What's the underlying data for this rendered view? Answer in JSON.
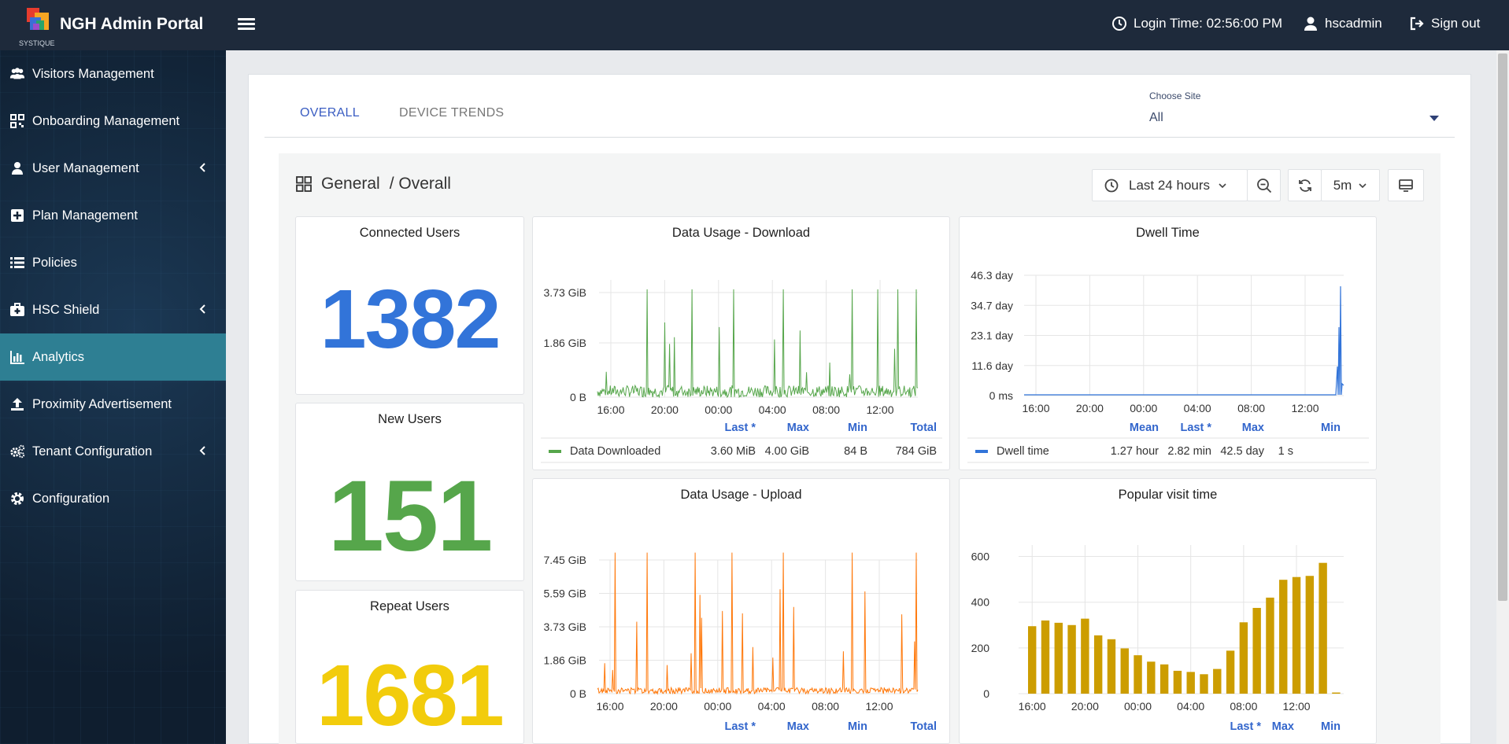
{
  "app": {
    "title": "NGH Admin Portal",
    "logo_text": "SYSTIQUE",
    "login_time": "Login Time: 02:56:00 PM",
    "user": "hscadmin",
    "signout": "Sign out"
  },
  "sidebar": {
    "items": [
      {
        "label": "Visitors Management",
        "icon": "users-icon",
        "has_chevron": false
      },
      {
        "label": "Onboarding Management",
        "icon": "qr-code-icon",
        "has_chevron": false
      },
      {
        "label": "User Management",
        "icon": "user-icon",
        "has_chevron": true
      },
      {
        "label": "Plan Management",
        "icon": "plus-square-icon",
        "has_chevron": false
      },
      {
        "label": "Policies",
        "icon": "list-icon",
        "has_chevron": false
      },
      {
        "label": "HSC Shield",
        "icon": "medkit-icon",
        "has_chevron": true
      },
      {
        "label": "Analytics",
        "icon": "bar-chart-icon",
        "has_chevron": false,
        "active": true
      },
      {
        "label": "Proximity Advertisement",
        "icon": "upload-icon",
        "has_chevron": false
      },
      {
        "label": "Tenant Configuration",
        "icon": "cogs-icon",
        "has_chevron": true
      },
      {
        "label": "Configuration",
        "icon": "gear-icon",
        "has_chevron": false
      }
    ]
  },
  "tabs": [
    {
      "label": "OVERALL",
      "active": true
    },
    {
      "label": "DEVICE TRENDS",
      "active": false
    }
  ],
  "site": {
    "label": "Choose Site",
    "value": "All"
  },
  "dashboard": {
    "breadcrumb_1": "General",
    "breadcrumb_2": "/ Overall",
    "time_range": "Last 24 hours",
    "refresh": "5m"
  },
  "stats": {
    "connected": {
      "title": "Connected Users",
      "value": "1382",
      "color": "#3274d9"
    },
    "new": {
      "title": "New Users",
      "value": "151",
      "color": "#56a64b"
    },
    "repeat": {
      "title": "Repeat Users",
      "value": "1681",
      "color": "#f2cc0c"
    }
  },
  "chart_data": [
    {
      "type": "line",
      "title": "Data Usage - Download",
      "x_ticks": [
        "16:00",
        "20:00",
        "00:00",
        "04:00",
        "08:00",
        "12:00"
      ],
      "y_ticks": [
        "0 B",
        "1.86 GiB",
        "3.73 GiB"
      ],
      "color": "#56a64b",
      "legend": {
        "headers": [
          "Last *",
          "Max",
          "Min",
          "Total"
        ],
        "series": "Data Downloaded",
        "values": [
          "3.60 MiB",
          "4.00 GiB",
          "84 B",
          "784 GiB"
        ]
      }
    },
    {
      "type": "line",
      "title": "Dwell Time",
      "x_ticks": [
        "16:00",
        "20:00",
        "00:00",
        "04:00",
        "08:00",
        "12:00"
      ],
      "y_ticks": [
        "0 ms",
        "11.6 day",
        "23.1 day",
        "34.7 day",
        "46.3 day"
      ],
      "color": "#3274d9",
      "legend": {
        "headers": [
          "Mean",
          "Last *",
          "Max",
          "Min"
        ],
        "series": "Dwell time",
        "values": [
          "1.27 hour",
          "2.82 min",
          "42.5 day",
          "1 s"
        ]
      }
    },
    {
      "type": "line",
      "title": "Data Usage - Upload",
      "x_ticks": [
        "16:00",
        "20:00",
        "00:00",
        "04:00",
        "08:00",
        "12:00"
      ],
      "y_ticks": [
        "0 B",
        "1.86 GiB",
        "3.73 GiB",
        "5.59 GiB",
        "7.45 GiB"
      ],
      "color": "#ff780a",
      "legend": {
        "headers": [
          "Last *",
          "Max",
          "Min",
          "Total"
        ]
      }
    },
    {
      "type": "bar",
      "title": "Popular visit time",
      "x_ticks": [
        "16:00",
        "20:00",
        "00:00",
        "04:00",
        "08:00",
        "12:00"
      ],
      "y_ticks": [
        "0",
        "200",
        "400",
        "600"
      ],
      "ylim": [
        0,
        650
      ],
      "color": "#cc9d00",
      "values": [
        295,
        320,
        310,
        300,
        328,
        255,
        238,
        198,
        168,
        140,
        128,
        100,
        95,
        85,
        108,
        188,
        312,
        375,
        420,
        498,
        510,
        515,
        572,
        5
      ],
      "legend": {
        "headers": [
          "Last *",
          "Max",
          "Min"
        ]
      }
    }
  ]
}
